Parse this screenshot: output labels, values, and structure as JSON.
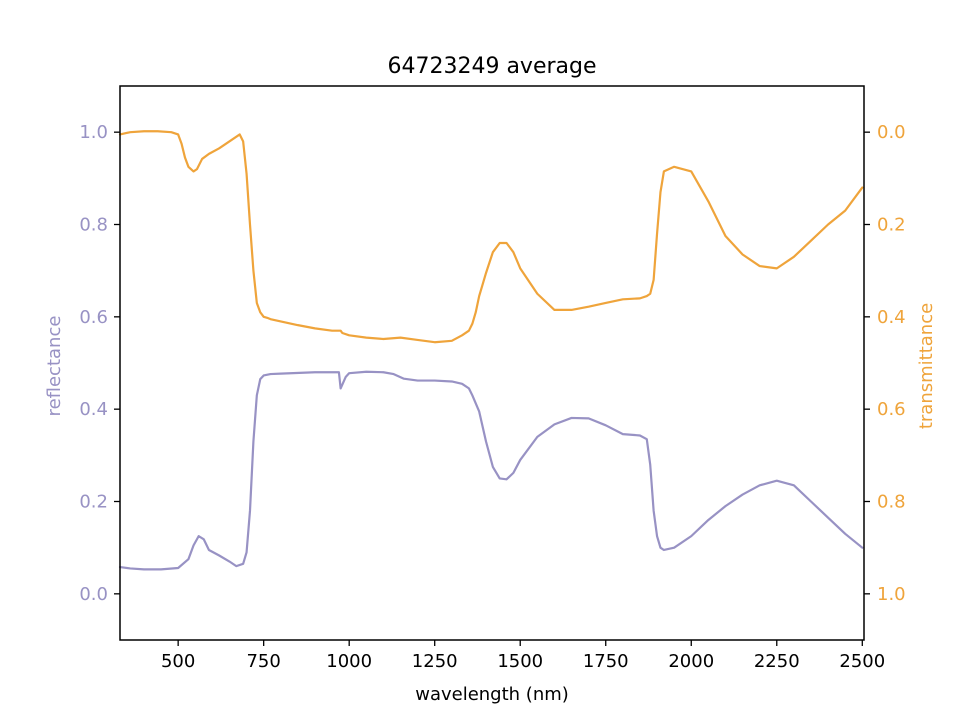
{
  "chart_data": {
    "type": "line",
    "title": "64723249 average",
    "xlabel": "wavelength (nm)",
    "ylabel_left": "reflectance",
    "ylabel_right": "transmittance",
    "xlim": [
      330,
      2505
    ],
    "ylim_left": [
      -0.1,
      1.1
    ],
    "ylim_right": [
      1.1,
      -0.1
    ],
    "right_axis_inverted": true,
    "grid": false,
    "x_ticks": [
      500,
      750,
      1000,
      1250,
      1500,
      1750,
      2000,
      2250,
      2500
    ],
    "y_ticks_left": [
      0.0,
      0.2,
      0.4,
      0.6,
      0.8,
      1.0
    ],
    "y_ticks_right": [
      0.0,
      0.2,
      0.4,
      0.6,
      0.8,
      1.0
    ],
    "tick_labels_x": [
      "500",
      "750",
      "1000",
      "1250",
      "1500",
      "1750",
      "2000",
      "2250",
      "2500"
    ],
    "tick_labels_left": [
      "0.0",
      "0.2",
      "0.4",
      "0.6",
      "0.8",
      "1.0"
    ],
    "tick_labels_right": [
      "0.0",
      "0.2",
      "0.4",
      "0.6",
      "0.8",
      "1.0"
    ],
    "colors": {
      "reflectance": "#9892c4",
      "transmittance": "#efa43b",
      "axis": "#000000"
    },
    "series": [
      {
        "axis": "left",
        "x": [
          330,
          360,
          400,
          450,
          500,
          530,
          545,
          560,
          575,
          590,
          620,
          650,
          670,
          690,
          700,
          710,
          720,
          730,
          740,
          750,
          770,
          800,
          900,
          970,
          975,
          990,
          1000,
          1050,
          1100,
          1130,
          1160,
          1200,
          1250,
          1300,
          1330,
          1350,
          1360,
          1380,
          1400,
          1420,
          1440,
          1460,
          1480,
          1500,
          1550,
          1600,
          1650,
          1700,
          1750,
          1800,
          1850,
          1870,
          1880,
          1890,
          1900,
          1910,
          1920,
          1950,
          2000,
          2050,
          2100,
          2150,
          2200,
          2250,
          2300,
          2350,
          2400,
          2450,
          2500
        ],
        "y": [
          0.058,
          0.055,
          0.053,
          0.053,
          0.056,
          0.075,
          0.105,
          0.125,
          0.118,
          0.095,
          0.083,
          0.07,
          0.06,
          0.065,
          0.09,
          0.18,
          0.33,
          0.43,
          0.465,
          0.473,
          0.476,
          0.477,
          0.48,
          0.48,
          0.445,
          0.47,
          0.478,
          0.481,
          0.48,
          0.476,
          0.466,
          0.462,
          0.462,
          0.46,
          0.455,
          0.445,
          0.43,
          0.395,
          0.33,
          0.275,
          0.25,
          0.248,
          0.262,
          0.29,
          0.34,
          0.367,
          0.381,
          0.38,
          0.365,
          0.346,
          0.343,
          0.335,
          0.28,
          0.18,
          0.125,
          0.1,
          0.095,
          0.1,
          0.125,
          0.16,
          0.19,
          0.215,
          0.235,
          0.245,
          0.235,
          0.2,
          0.165,
          0.13,
          0.1
        ]
      },
      {
        "axis": "right",
        "x": [
          330,
          360,
          400,
          440,
          480,
          500,
          510,
          520,
          530,
          545,
          555,
          570,
          590,
          620,
          640,
          660,
          680,
          690,
          700,
          710,
          720,
          730,
          740,
          750,
          760,
          770,
          800,
          850,
          900,
          950,
          975,
          980,
          1000,
          1050,
          1100,
          1150,
          1200,
          1250,
          1300,
          1330,
          1350,
          1360,
          1370,
          1380,
          1390,
          1400,
          1420,
          1440,
          1460,
          1480,
          1500,
          1550,
          1600,
          1650,
          1700,
          1750,
          1800,
          1850,
          1870,
          1880,
          1890,
          1900,
          1910,
          1920,
          1950,
          2000,
          2050,
          2100,
          2150,
          2200,
          2250,
          2300,
          2350,
          2400,
          2450,
          2500
        ],
        "y": [
          0.005,
          0.0,
          -0.002,
          -0.002,
          0.0,
          0.005,
          0.025,
          0.055,
          0.075,
          0.085,
          0.08,
          0.058,
          0.047,
          0.035,
          0.025,
          0.015,
          0.005,
          0.02,
          0.09,
          0.2,
          0.3,
          0.37,
          0.39,
          0.4,
          0.402,
          0.405,
          0.41,
          0.418,
          0.425,
          0.43,
          0.43,
          0.435,
          0.44,
          0.445,
          0.448,
          0.445,
          0.45,
          0.455,
          0.452,
          0.44,
          0.43,
          0.415,
          0.39,
          0.355,
          0.33,
          0.305,
          0.26,
          0.24,
          0.24,
          0.26,
          0.295,
          0.35,
          0.385,
          0.385,
          0.378,
          0.37,
          0.362,
          0.36,
          0.355,
          0.35,
          0.32,
          0.22,
          0.13,
          0.085,
          0.075,
          0.085,
          0.15,
          0.225,
          0.265,
          0.29,
          0.295,
          0.27,
          0.235,
          0.2,
          0.17,
          0.12
        ]
      }
    ]
  }
}
